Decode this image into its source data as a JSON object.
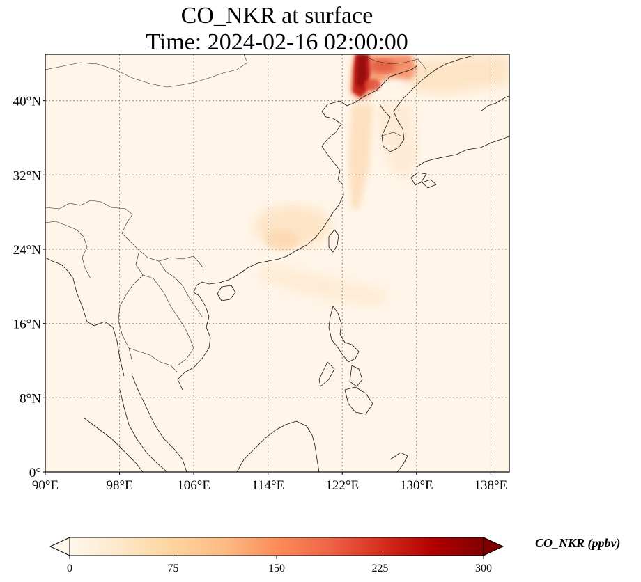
{
  "title": {
    "line1": "CO_NKR at surface",
    "line2": "Time: 2024-02-16 02:00:00"
  },
  "map": {
    "lon_range": [
      90,
      140
    ],
    "lat_range": [
      0,
      45
    ],
    "lon_ticks": [
      "90°E",
      "98°E",
      "106°E",
      "114°E",
      "122°E",
      "130°E",
      "138°E"
    ],
    "lat_ticks": [
      "0°",
      "8°N",
      "16°N",
      "24°N",
      "32°N",
      "40°N"
    ],
    "gridlines": "dotted",
    "features": [
      "coastlines",
      "country-borders"
    ],
    "colormap": "OrRd"
  },
  "colorbar": {
    "label": "CO_NKR (ppbv)",
    "ticks": [
      "0",
      "75",
      "150",
      "225",
      "300"
    ],
    "range": [
      0,
      300
    ],
    "extend": "both",
    "colors": [
      "#fff7ec",
      "#fee8c8",
      "#fdd49e",
      "#fdbb84",
      "#fc8d59",
      "#ef6548",
      "#d7301f",
      "#b30000",
      "#7f0000"
    ]
  }
}
